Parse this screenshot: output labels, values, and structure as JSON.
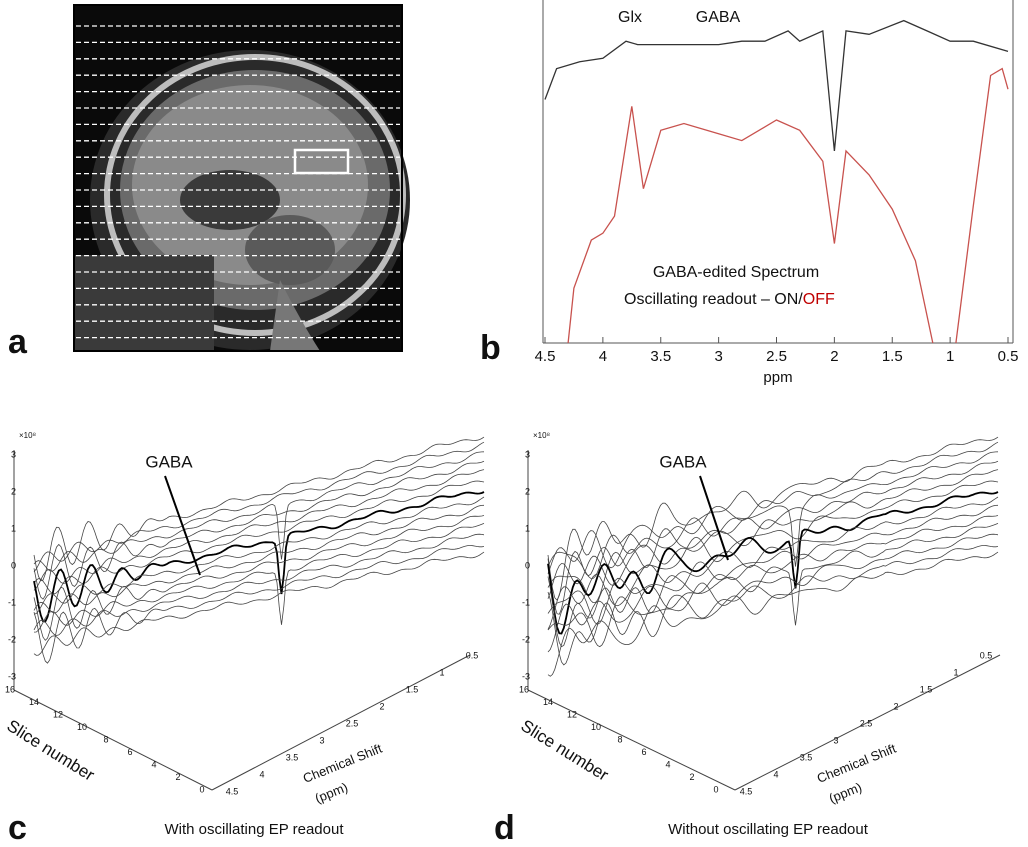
{
  "panel_labels": [
    "a",
    "b",
    "c",
    "d"
  ],
  "chart_data": {
    "type": "line",
    "annotations": [
      "Glx",
      "GABA",
      "GABA-edited Spectrum",
      "Oscillating readout – ON/",
      "OFF"
    ],
    "x_label": "ppm",
    "xlim": [
      4.5,
      0.5
    ],
    "xticks": [
      4.5,
      4,
      3.5,
      3,
      2.5,
      2,
      1.5,
      1,
      0.5
    ],
    "ylim": [
      0,
      100
    ],
    "series": [
      {
        "color": "#333333",
        "x": [
          4.5,
          4.4,
          4.2,
          4.0,
          3.8,
          3.7,
          3.5,
          3.2,
          3.0,
          2.8,
          2.6,
          2.4,
          2.3,
          2.1,
          2.0,
          1.9,
          1.7,
          1.4,
          1.2,
          1.0,
          0.8,
          0.5
        ],
        "values": [
          71,
          80,
          82,
          83,
          88,
          87,
          87,
          87,
          87,
          88,
          88,
          91,
          88,
          91,
          56,
          91,
          90,
          94,
          91,
          88,
          88,
          85
        ]
      },
      {
        "color": "#c8524e",
        "x": [
          4.3,
          4.25,
          4.1,
          4.0,
          3.9,
          3.75,
          3.65,
          3.5,
          3.3,
          3.0,
          2.8,
          2.5,
          2.3,
          2.1,
          2.0,
          1.9,
          1.7,
          1.5,
          1.3,
          1.15,
          1.0,
          0.95,
          0.8,
          0.65,
          0.55,
          0.5
        ],
        "values": [
          0,
          16,
          30,
          32,
          37,
          69,
          45,
          62,
          64,
          61,
          59,
          65,
          62,
          53,
          29,
          56,
          49,
          39,
          24,
          0,
          null,
          0,
          40,
          78,
          80,
          74
        ]
      }
    ]
  },
  "panel_c": {
    "gaba_label": "GABA",
    "exponent": "×10⁸",
    "z_ticks": [
      3,
      2,
      1,
      0,
      -1,
      -2,
      -3
    ],
    "slice_ticks": [
      16,
      14,
      12,
      10,
      8,
      6,
      4,
      2,
      0
    ],
    "shift_ticks": [
      4.5,
      4,
      3.5,
      3,
      2.5,
      2,
      1.5,
      1,
      0.5
    ],
    "slice_label": "Slice number",
    "shift_label": [
      "Chemical Shift",
      "(ppm)"
    ],
    "caption": "With oscillating EP readout"
  },
  "panel_d": {
    "gaba_label": "GABA",
    "exponent": "×10⁸",
    "z_ticks": [
      3,
      2,
      1,
      0,
      -1,
      -2,
      -3
    ],
    "slice_ticks": [
      16,
      14,
      12,
      10,
      8,
      6,
      4,
      2,
      0
    ],
    "shift_ticks": [
      4.5,
      4,
      3.5,
      3,
      2.5,
      2,
      1.5,
      1,
      0.5
    ],
    "slice_label": "Slice number",
    "shift_label": [
      "Chemical Shift",
      "(ppm)"
    ],
    "caption": "Without oscillating EP readout"
  }
}
